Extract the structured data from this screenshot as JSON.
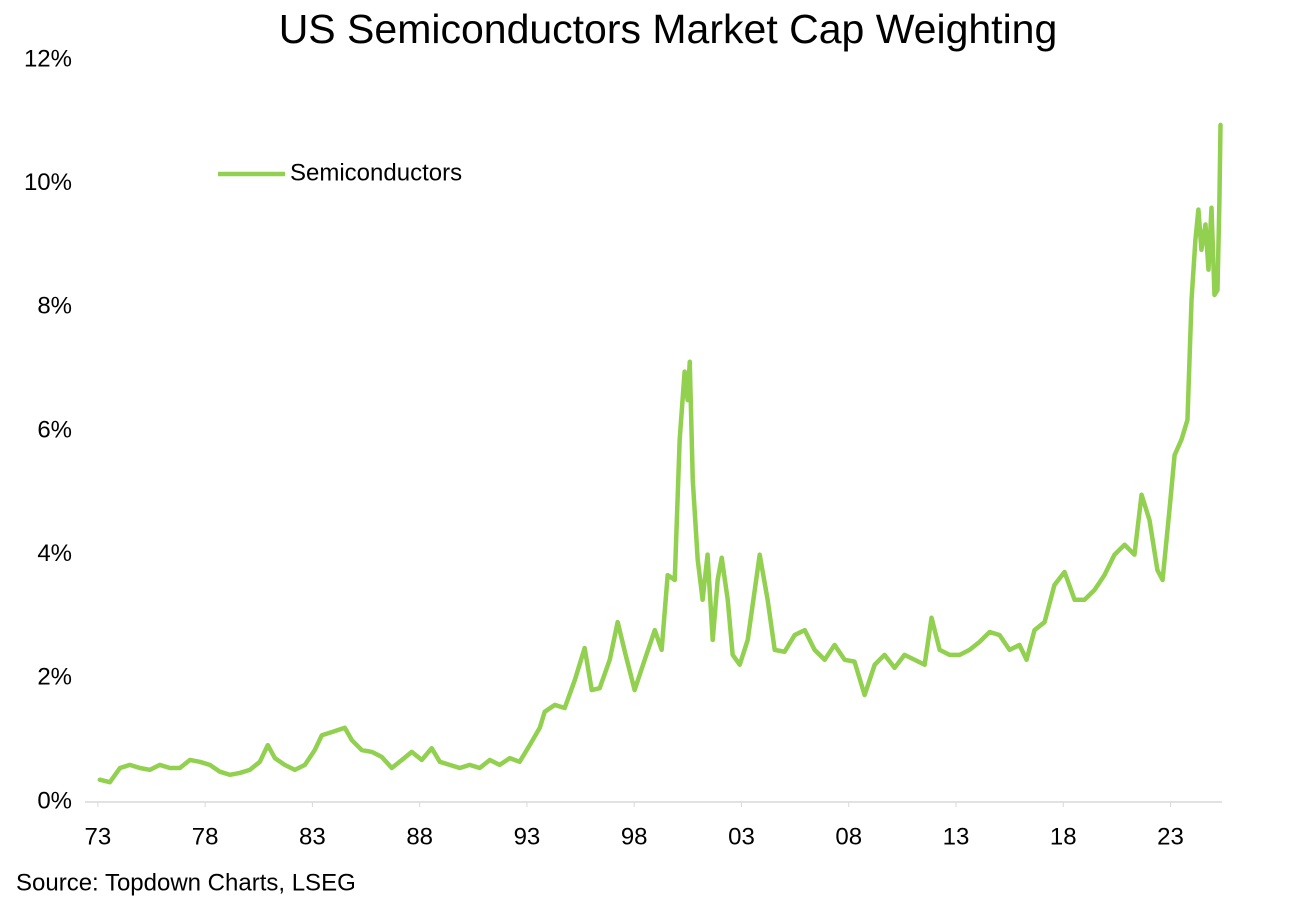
{
  "chart_data": {
    "type": "line",
    "title": "US Semiconductors Market Cap Weighting",
    "source": "Source: Topdown Charts, LSEG",
    "legend": "upper left",
    "grid": false,
    "xlim": [
      1972.4,
      2025.4
    ],
    "xticks": [
      {
        "value": 1973,
        "label": "73"
      },
      {
        "value": 1978,
        "label": "78"
      },
      {
        "value": 1983,
        "label": "83"
      },
      {
        "value": 1988,
        "label": "88"
      },
      {
        "value": 1993,
        "label": "93"
      },
      {
        "value": 1998,
        "label": "98"
      },
      {
        "value": 2003,
        "label": "03"
      },
      {
        "value": 2008,
        "label": "08"
      },
      {
        "value": 2013,
        "label": "13"
      },
      {
        "value": 2018,
        "label": "18"
      },
      {
        "value": 2023,
        "label": "23"
      }
    ],
    "ylim": [
      0,
      12
    ],
    "yticks": [
      {
        "value": 0,
        "label": "0%"
      },
      {
        "value": 2,
        "label": "2%"
      },
      {
        "value": 4,
        "label": "4%"
      },
      {
        "value": 6,
        "label": "6%"
      },
      {
        "value": 8,
        "label": "8%"
      },
      {
        "value": 10,
        "label": "10%"
      },
      {
        "value": 12,
        "label": "12%"
      }
    ],
    "x": [
      1973.09,
      1973.56,
      1974.03,
      1974.49,
      1974.96,
      1975.42,
      1975.89,
      1976.36,
      1976.82,
      1977.29,
      1977.75,
      1978.22,
      1978.69,
      1979.15,
      1979.62,
      1980.08,
      1980.55,
      1980.92,
      1981.25,
      1981.71,
      1982.18,
      1982.65,
      1983.11,
      1983.44,
      1983.9,
      1984.51,
      1984.84,
      1985.3,
      1985.77,
      1986.23,
      1986.7,
      1987.17,
      1987.63,
      1988.1,
      1988.56,
      1988.94,
      1989.4,
      1989.87,
      1990.33,
      1990.8,
      1991.27,
      1991.73,
      1992.2,
      1992.66,
      1993.13,
      1993.6,
      1993.83,
      1994.3,
      1994.76,
      1995.23,
      1995.69,
      1996.02,
      1996.39,
      1996.86,
      1997.23,
      1997.6,
      1998.02,
      1998.49,
      1998.96,
      1999.28,
      1999.56,
      1999.89,
      2000.12,
      2000.35,
      2000.49,
      2000.59,
      2000.73,
      2000.96,
      2001.19,
      2001.42,
      2001.66,
      2001.89,
      2002.08,
      2002.36,
      2002.59,
      2002.92,
      2003.29,
      2003.62,
      2003.85,
      2004.22,
      2004.55,
      2005.01,
      2005.48,
      2005.95,
      2006.41,
      2006.88,
      2007.34,
      2007.81,
      2008.27,
      2008.74,
      2009.21,
      2009.67,
      2010.14,
      2010.6,
      2011.07,
      2011.54,
      2011.86,
      2012.24,
      2012.7,
      2013.17,
      2013.63,
      2014.1,
      2014.57,
      2015.03,
      2015.5,
      2015.96,
      2016.29,
      2016.66,
      2017.13,
      2017.59,
      2018.06,
      2018.53,
      2018.99,
      2019.46,
      2019.92,
      2020.39,
      2020.86,
      2021.32,
      2021.65,
      2022.02,
      2022.39,
      2022.63,
      2022.95,
      2023.19,
      2023.51,
      2023.79,
      2023.98,
      2024.16,
      2024.3,
      2024.44,
      2024.63,
      2024.77,
      2024.91,
      2025.05,
      2025.19,
      2025.28,
      2025.33
    ],
    "series": [
      {
        "name": "Semiconductors",
        "color": "#92d050",
        "values": [
          0.36,
          0.32,
          0.55,
          0.6,
          0.55,
          0.52,
          0.6,
          0.55,
          0.55,
          0.68,
          0.65,
          0.6,
          0.49,
          0.44,
          0.47,
          0.52,
          0.65,
          0.92,
          0.71,
          0.6,
          0.52,
          0.6,
          0.84,
          1.08,
          1.13,
          1.2,
          1.0,
          0.84,
          0.81,
          0.73,
          0.55,
          0.68,
          0.81,
          0.68,
          0.87,
          0.65,
          0.6,
          0.55,
          0.6,
          0.55,
          0.68,
          0.6,
          0.71,
          0.65,
          0.92,
          1.2,
          1.46,
          1.57,
          1.52,
          1.97,
          2.49,
          1.81,
          1.84,
          2.3,
          2.91,
          2.38,
          1.81,
          2.3,
          2.78,
          2.46,
          3.67,
          3.59,
          5.86,
          6.96,
          6.5,
          7.12,
          5.21,
          3.92,
          3.27,
          4.0,
          2.62,
          3.59,
          3.95,
          3.27,
          2.38,
          2.22,
          2.62,
          3.43,
          4.0,
          3.27,
          2.46,
          2.43,
          2.7,
          2.78,
          2.46,
          2.3,
          2.54,
          2.3,
          2.27,
          1.73,
          2.22,
          2.38,
          2.17,
          2.38,
          2.3,
          2.22,
          2.98,
          2.46,
          2.38,
          2.38,
          2.46,
          2.59,
          2.75,
          2.7,
          2.46,
          2.54,
          2.3,
          2.78,
          2.91,
          3.51,
          3.72,
          3.27,
          3.27,
          3.43,
          3.67,
          4.0,
          4.16,
          4.0,
          4.97,
          4.56,
          3.75,
          3.59,
          4.72,
          5.61,
          5.86,
          6.18,
          8.12,
          9.09,
          9.58,
          8.93,
          9.34,
          8.61,
          9.61,
          8.2,
          8.28,
          9.74,
          10.95
        ]
      }
    ]
  }
}
